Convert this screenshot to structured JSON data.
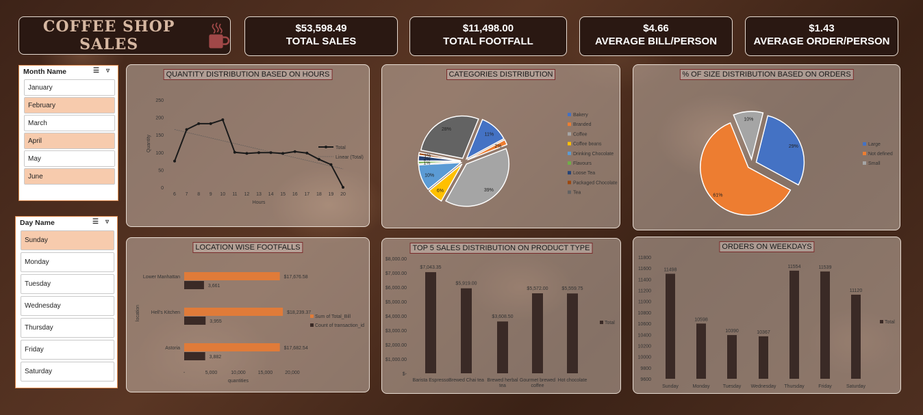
{
  "header": {
    "title": "COFFEE SHOP SALES",
    "kpis": [
      {
        "value": "$53,598.49",
        "label": "TOTAL SALES"
      },
      {
        "value": "$11,498.00",
        "label": "TOTAL FOOTFALL"
      },
      {
        "value": "$4.66",
        "label": "AVERAGE BILL/PERSON"
      },
      {
        "value": "$1.43",
        "label": "AVERAGE ORDER/PERSON"
      }
    ]
  },
  "slicers": {
    "month": {
      "title": "Month Name",
      "items": [
        "January",
        "February",
        "March",
        "April",
        "May",
        "June"
      ],
      "selected": [
        "February",
        "April",
        "June"
      ]
    },
    "day": {
      "title": "Day Name",
      "items": [
        "Sunday",
        "Monday",
        "Tuesday",
        "Wednesday",
        "Thursday",
        "Friday",
        "Saturday"
      ],
      "selected": [
        "Sunday"
      ]
    }
  },
  "colors": {
    "accent": "#e07b39",
    "dark": "#3a2a26",
    "kpi_bg": "#2a1812"
  },
  "chart_data": [
    {
      "type": "line",
      "title": "QUANTITY DISTRIBUTION BASED ON HOURS",
      "xlabel": "Hours",
      "ylabel": "Quantity",
      "x": [
        6,
        7,
        8,
        9,
        10,
        11,
        12,
        13,
        14,
        15,
        16,
        17,
        18,
        19,
        20
      ],
      "series": [
        {
          "name": "Total",
          "values": [
            75,
            165,
            182,
            182,
            193,
            100,
            97,
            99,
            99,
            97,
            102,
            98,
            80,
            65,
            0
          ]
        }
      ],
      "trendline": "Linear (Total)",
      "ylim": [
        0,
        250
      ],
      "yticks": [
        0,
        50,
        100,
        150,
        200,
        250
      ]
    },
    {
      "type": "pie",
      "title": "CATEGORIES DISTRIBUTION",
      "categories": [
        "Bakery",
        "Branded",
        "Coffee",
        "Coffee beans",
        "Drinking Chocolate",
        "Flavours",
        "Loose Tea",
        "Packaged Chocolate",
        "Tea"
      ],
      "values": [
        11,
        2,
        39,
        6,
        10,
        1,
        2,
        1,
        28
      ],
      "labels": [
        "11%",
        "2%",
        "39%",
        "6%",
        "10%",
        "1%",
        "2%",
        "1%",
        "28%"
      ],
      "colors": [
        "#4472c4",
        "#ed7d31",
        "#a5a5a5",
        "#ffc000",
        "#5b9bd5",
        "#70ad47",
        "#264478",
        "#9e480e",
        "#636363"
      ]
    },
    {
      "type": "pie",
      "title": "% OF SIZE DISTRIBUTION BASED ON ORDERS",
      "categories": [
        "Large",
        "Not defined",
        "Small"
      ],
      "values": [
        29,
        61,
        10
      ],
      "labels": [
        "29%",
        "61%",
        "10%"
      ],
      "colors": [
        "#4472c4",
        "#ed7d31",
        "#a5a5a5"
      ]
    },
    {
      "type": "bar",
      "orientation": "horizontal",
      "title": "LOCATION WISE FOOTFALLS",
      "xlabel": "quantities",
      "ylabel": "location",
      "categories": [
        "Lower Manhattan",
        "Hell's Kitchen",
        "Astoria"
      ],
      "series": [
        {
          "name": "Sum of Total_Bill",
          "values": [
            17676.58,
            18239.37,
            17682.54
          ],
          "labels": [
            "$17,676.58",
            "$18,239.37",
            "$17,682.54"
          ]
        },
        {
          "name": "Count of transaction_id",
          "values": [
            3661,
            3955,
            3882
          ],
          "labels": [
            "3,661",
            "3,955",
            "3,882"
          ]
        }
      ],
      "xticks": [
        "-",
        "5,000",
        "10,000",
        "15,000",
        "20,000"
      ],
      "xlim": [
        0,
        20000
      ]
    },
    {
      "type": "bar",
      "title": "TOP 5 SALES DISTRIBUTION ON PRODUCT TYPE",
      "categories": [
        "Barista Espresso",
        "Brewed Chai tea",
        "Brewed herbal tea",
        "Gourmet brewed coffee",
        "Hot chocolate"
      ],
      "series": [
        {
          "name": "Total",
          "values": [
            7043.35,
            5919.0,
            3608.5,
            5572.0,
            5559.75
          ],
          "labels": [
            "$7,043.35",
            "$5,919.00",
            "$3,608.50",
            "$5,572.00",
            "$5,559.75"
          ]
        }
      ],
      "ylim": [
        0,
        8000
      ],
      "yticks": [
        "$-",
        "$1,000.00",
        "$2,000.00",
        "$3,000.00",
        "$4,000.00",
        "$5,000.00",
        "$6,000.00",
        "$7,000.00",
        "$8,000.00"
      ]
    },
    {
      "type": "bar",
      "title": "ORDERS ON WEEKDAYS",
      "categories": [
        "Sunday",
        "Monday",
        "Tuesday",
        "Wednesday",
        "Thursday",
        "Friday",
        "Saturday"
      ],
      "series": [
        {
          "name": "Total",
          "values": [
            11498,
            10598,
            10390,
            10367,
            11554,
            11539,
            11120
          ]
        }
      ],
      "ylim": [
        9600,
        11800
      ],
      "yticks": [
        9600,
        9800,
        10000,
        10200,
        10400,
        10600,
        10800,
        11000,
        11200,
        11400,
        11600,
        11800
      ]
    }
  ]
}
